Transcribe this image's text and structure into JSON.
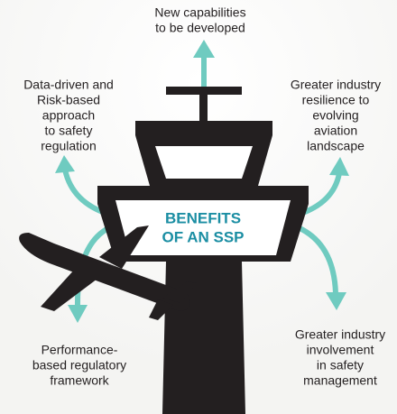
{
  "center_label": {
    "lines": [
      "BENEFITS",
      "OF AN SSP"
    ]
  },
  "benefits": [
    {
      "lines": [
        "New capabilities",
        "to be developed"
      ]
    },
    {
      "lines": [
        "Data-driven and",
        "Risk-based",
        "approach",
        "to safety",
        "regulation"
      ]
    },
    {
      "lines": [
        "Greater industry",
        "resilience to",
        "evolving",
        "aviation",
        "landscape"
      ]
    },
    {
      "lines": [
        "Performance-",
        "based regulatory",
        "framework"
      ]
    },
    {
      "lines": [
        "Greater industry",
        "involvement",
        "in safety",
        "management"
      ]
    }
  ]
}
